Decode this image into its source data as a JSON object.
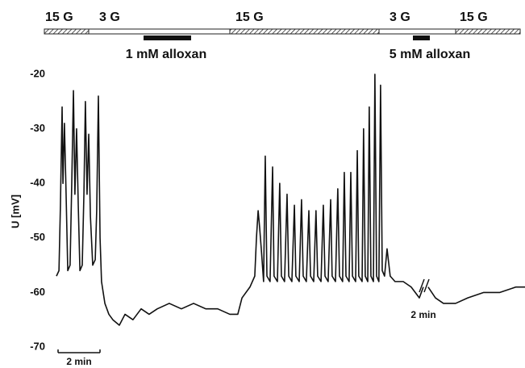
{
  "chart_data": {
    "type": "line",
    "y_label": "U [mV]",
    "color": "#111111",
    "annotations": [
      "15 G",
      "3 G",
      "15 G",
      "3 G",
      "15 G",
      "1 mM alloxan",
      "5 mM alloxan",
      "2 min",
      "2 min"
    ],
    "xlim": [
      0,
      22.35
    ],
    "ylim": [
      -70,
      -20
    ],
    "yticks": [
      -70,
      -60,
      -50,
      -40,
      -30,
      -20
    ],
    "x": [
      0,
      0.12,
      0.19,
      0.27,
      0.31,
      0.38,
      0.46,
      0.54,
      0.65,
      0.73,
      0.81,
      0.88,
      0.96,
      1.04,
      1.12,
      1.23,
      1.31,
      1.38,
      1.46,
      1.54,
      1.62,
      1.73,
      1.85,
      1.92,
      2.0,
      2.08,
      2.15,
      2.31,
      2.5,
      2.69,
      3.0,
      3.27,
      3.65,
      4.04,
      4.42,
      4.81,
      5.38,
      5.96,
      6.54,
      7.12,
      7.69,
      8.27,
      8.65,
      8.85,
      9.23,
      9.46,
      9.54,
      9.62,
      9.69,
      9.77,
      9.88,
      9.96,
      10.04,
      10.19,
      10.31,
      10.38,
      10.54,
      10.65,
      10.73,
      10.88,
      11.0,
      11.08,
      11.23,
      11.35,
      11.42,
      11.58,
      11.69,
      11.77,
      11.92,
      12.04,
      12.12,
      12.27,
      12.38,
      12.46,
      12.62,
      12.73,
      12.81,
      12.96,
      13.08,
      13.15,
      13.31,
      13.42,
      13.5,
      13.65,
      13.73,
      13.81,
      13.96,
      14.04,
      14.12,
      14.27,
      14.35,
      14.42,
      14.58,
      14.65,
      14.73,
      14.85,
      14.92,
      15.0,
      15.12,
      15.19,
      15.27,
      15.38,
      15.46,
      15.54,
      15.65,
      15.77,
      15.92,
      16.15,
      16.54,
      16.92,
      17.31,
      17.5,
      17.6,
      17.73,
      18.08,
      18.46,
      19.04,
      19.62,
      20.38,
      21.15,
      21.92,
      22.35
    ],
    "values": [
      -57,
      -56,
      -44,
      -26,
      -40,
      -29,
      -42,
      -56,
      -55,
      -40,
      -23,
      -42,
      -30,
      -44,
      -56,
      -55,
      -42,
      -25,
      -42,
      -31,
      -46,
      -55,
      -54,
      -45,
      -24,
      -50,
      -58,
      -62,
      -64,
      -65,
      -66,
      -64,
      -65,
      -63,
      -64,
      -63,
      -62,
      -63,
      -62,
      -63,
      -63,
      -64,
      -64,
      -61,
      -59,
      -57,
      -50,
      -45,
      -48,
      -52,
      -58,
      -35,
      -57,
      -58,
      -37,
      -57,
      -58,
      -40,
      -57,
      -58,
      -42,
      -57,
      -58,
      -44,
      -57,
      -58,
      -43,
      -57,
      -58,
      -45,
      -57,
      -58,
      -45,
      -57,
      -58,
      -44,
      -57,
      -58,
      -43,
      -57,
      -58,
      -41,
      -57,
      -58,
      -38,
      -57,
      -58,
      -38,
      -57,
      -58,
      -34,
      -57,
      -58,
      -30,
      -57,
      -58,
      -26,
      -57,
      -58,
      -20,
      -57,
      -58,
      -22,
      -56,
      -57,
      -52,
      -57,
      -58,
      -58,
      -59,
      -61,
      -59,
      null,
      -59,
      -61,
      -62,
      -62,
      -61,
      -60,
      -60,
      -59,
      -59
    ]
  }
}
